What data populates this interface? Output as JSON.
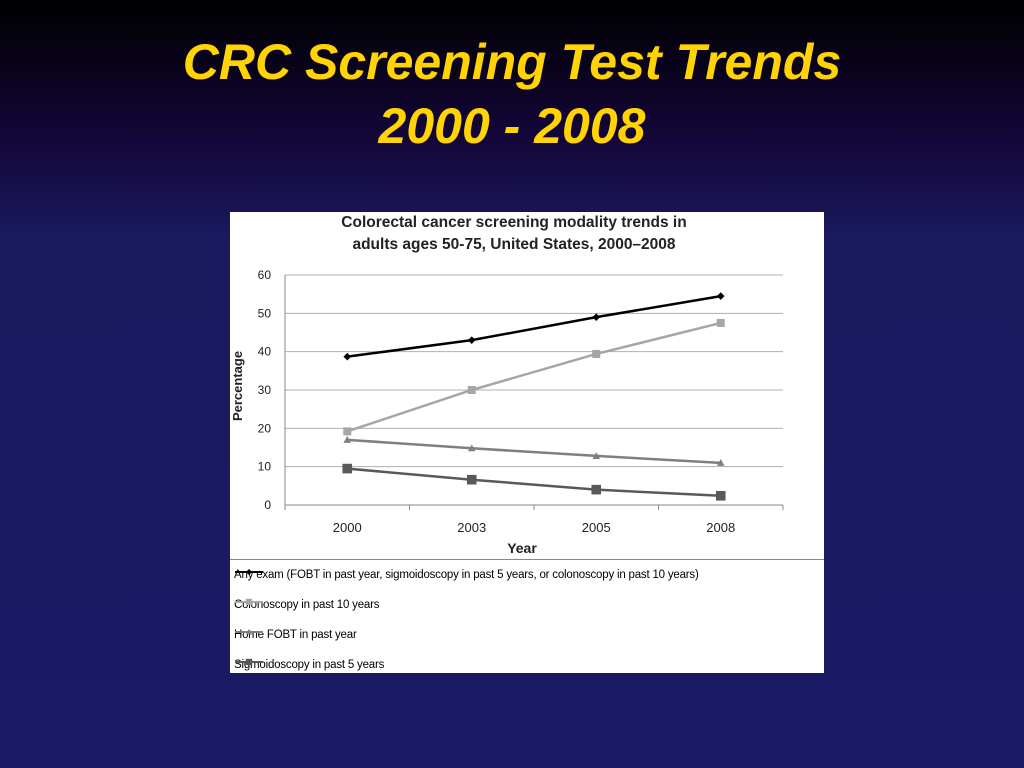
{
  "slide": {
    "title_line1": "CRC Screening Test Trends",
    "title_line2": "2000 - 2008"
  },
  "colors": {
    "title": "#ffd400",
    "background": "#1a1a66"
  },
  "chart_data": {
    "type": "line",
    "title_line1": "Colorectal cancer screening modality trends in",
    "title_line2": "adults ages 50-75, United States, 2000–2008",
    "xlabel": "Year",
    "ylabel": "Percentage",
    "categories": [
      "2000",
      "2003",
      "2005",
      "2008"
    ],
    "ylim": [
      0,
      60
    ],
    "yticks": [
      0,
      10,
      20,
      30,
      40,
      50,
      60
    ],
    "grid": true,
    "legend_position": "bottom",
    "series": [
      {
        "name": "Any exam (FOBT in past year, sigmoidoscopy in past 5 years, or colonoscopy in past 10 years)",
        "values": [
          38.7,
          43.0,
          49.0,
          54.5
        ],
        "color": "#000000",
        "marker": "diamond"
      },
      {
        "name": "Colonoscopy in past 10 years",
        "values": [
          19.2,
          30.0,
          39.4,
          47.5
        ],
        "color": "#a6a6a6",
        "marker": "square"
      },
      {
        "name": "Home FOBT in past year",
        "values": [
          17.0,
          14.8,
          12.8,
          11.0
        ],
        "color": "#7f7f7f",
        "marker": "triangle"
      },
      {
        "name": "Sigmoidoscopy in past 5 years",
        "values": [
          9.5,
          6.6,
          4.0,
          2.4
        ],
        "color": "#595959",
        "marker": "square"
      }
    ]
  }
}
